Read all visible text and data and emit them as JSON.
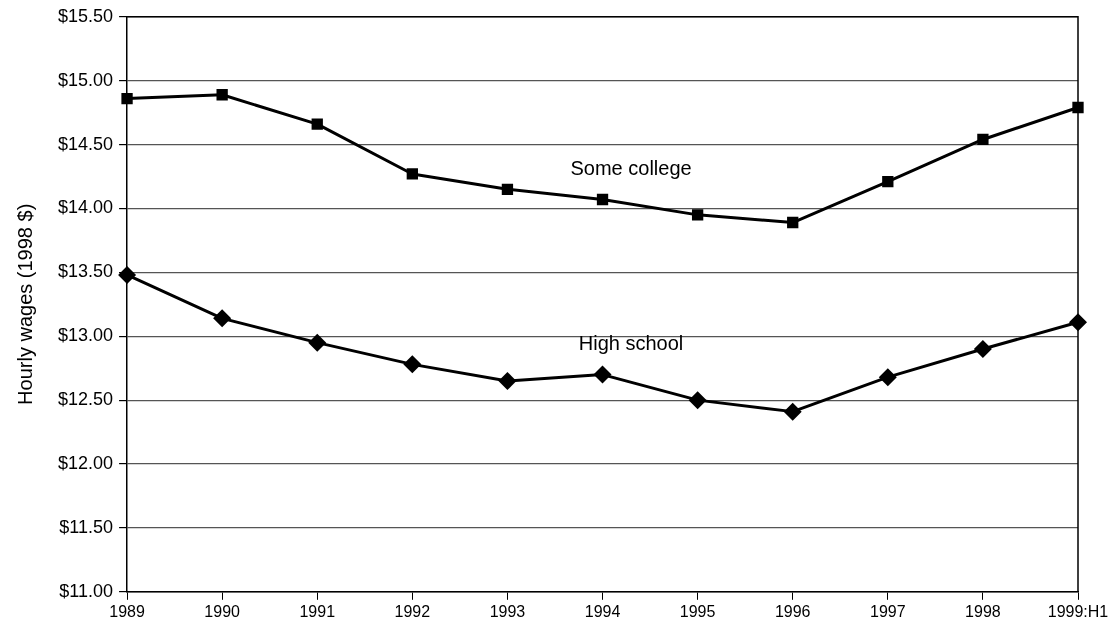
{
  "chart_data": {
    "type": "line",
    "ylabel": "Hourly wages (1998 $)",
    "categories": [
      "1989",
      "1990",
      "1991",
      "1992",
      "1993",
      "1994",
      "1995",
      "1996",
      "1997",
      "1998",
      "1999:H1"
    ],
    "series": [
      {
        "name": "Some college",
        "color": "#000000",
        "marker": "square",
        "values": [
          14.86,
          14.89,
          14.66,
          14.27,
          14.15,
          14.07,
          13.95,
          13.89,
          14.21,
          14.54,
          14.79
        ]
      },
      {
        "name": "High school",
        "color": "#000000",
        "marker": "diamond",
        "values": [
          13.48,
          13.14,
          12.95,
          12.78,
          12.65,
          12.7,
          12.5,
          12.41,
          12.68,
          12.9,
          13.11
        ]
      }
    ],
    "ylim": [
      11,
      15.5
    ],
    "yticks": [
      {
        "value": 11,
        "label": "$11.00"
      },
      {
        "value": 11.5,
        "label": "$11.50"
      },
      {
        "value": 12,
        "label": "$12.00"
      },
      {
        "value": 12.5,
        "label": "$12.50"
      },
      {
        "value": 13,
        "label": "$13.00"
      },
      {
        "value": 13.5,
        "label": "$13.50"
      },
      {
        "value": 14,
        "label": "$14.00"
      },
      {
        "value": 14.5,
        "label": "$14.50"
      },
      {
        "value": 15,
        "label": "$15.00"
      },
      {
        "value": 15.5,
        "label": "$15.50"
      }
    ],
    "grid": "y",
    "legend": false,
    "line_style": "solid"
  }
}
